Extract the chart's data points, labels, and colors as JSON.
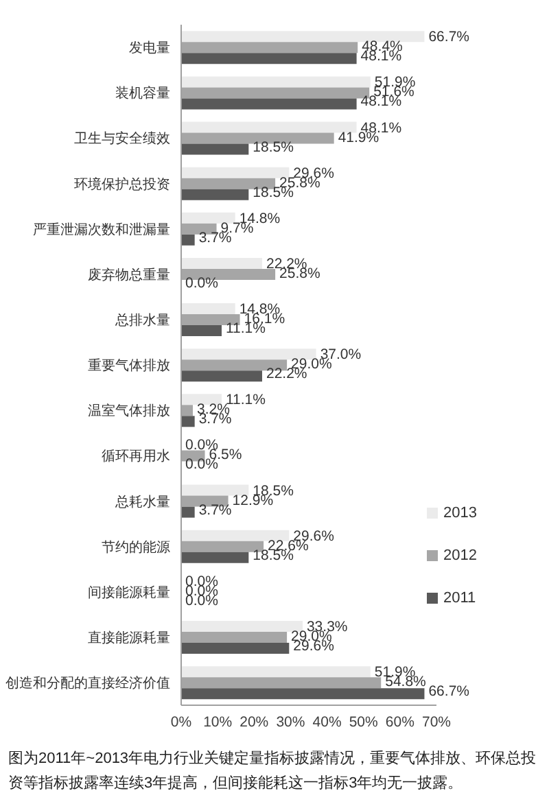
{
  "chart_data": {
    "type": "bar",
    "orientation": "horizontal",
    "categories": [
      "发电量",
      "装机容量",
      "卫生与安全绩效",
      "环境保护总投资",
      "严重泄漏次数和泄漏量",
      "废弃物总重量",
      "总排水量",
      "重要气体排放",
      "温室气体排放",
      "循环再用水",
      "总耗水量",
      "节约的能源",
      "间接能源耗量",
      "直接能源耗量",
      "创造和分配的直接经济价值"
    ],
    "series": [
      {
        "name": "2013",
        "color": "#ebebeb",
        "values": [
          66.7,
          51.9,
          48.1,
          29.6,
          14.8,
          22.2,
          14.8,
          37.0,
          11.1,
          0.0,
          18.5,
          29.6,
          0.0,
          33.3,
          51.9
        ],
        "value_labels": [
          "66.7%",
          "51.9%",
          "48.1%",
          "29.6%",
          "14.8%",
          "22.2%",
          "14.8%",
          "37.0%",
          "11.1%",
          "0.0%",
          "18.5%",
          "29.6%",
          "0.0%",
          "33.3%",
          "51.9%"
        ]
      },
      {
        "name": "2012",
        "color": "#a6a6a6",
        "values": [
          48.4,
          51.6,
          41.9,
          25.8,
          9.7,
          25.8,
          16.1,
          29.0,
          3.2,
          6.5,
          12.9,
          22.6,
          0.0,
          29.0,
          54.8
        ],
        "value_labels": [
          "48.4%",
          "51.6%",
          "41.9%",
          "25.8%",
          "9.7%",
          "25.8%",
          "16.1%",
          "29.0%",
          "3.2%",
          "6.5%",
          "12.9%",
          "22.6%",
          "0.0%",
          "29.0%",
          "54.8%"
        ]
      },
      {
        "name": "2011",
        "color": "#595959",
        "values": [
          48.1,
          48.1,
          18.5,
          18.5,
          3.7,
          0.0,
          11.1,
          22.2,
          3.7,
          0.0,
          3.7,
          18.5,
          0.0,
          29.6,
          66.7
        ],
        "value_labels": [
          "48.1%",
          "48.1%",
          "18.5%",
          "18.5%",
          "3.7%",
          "0.0%",
          "11.1%",
          "22.2%",
          "3.7%",
          "0.0%",
          "3.7%",
          "18.5%",
          "0.0%",
          "29.6%",
          "66.7%"
        ]
      }
    ],
    "xlim": [
      0,
      70
    ],
    "xticks": [
      {
        "value": 0,
        "label": "0%"
      },
      {
        "value": 10,
        "label": "10%"
      },
      {
        "value": 20,
        "label": "20%"
      },
      {
        "value": 30,
        "label": "30%"
      },
      {
        "value": 40,
        "label": "40%"
      },
      {
        "value": 50,
        "label": "50%"
      },
      {
        "value": 60,
        "label": "60%"
      },
      {
        "value": 70,
        "label": "70%"
      }
    ],
    "legend": "right",
    "grid": false,
    "annotations": [
      "图为2011年~2013年电力行业关键定量指标披露情况，重要气体排放、环保总投资等指标披露率连续3年提高，但间接能耗这一指标3年均无一披露。"
    ]
  }
}
